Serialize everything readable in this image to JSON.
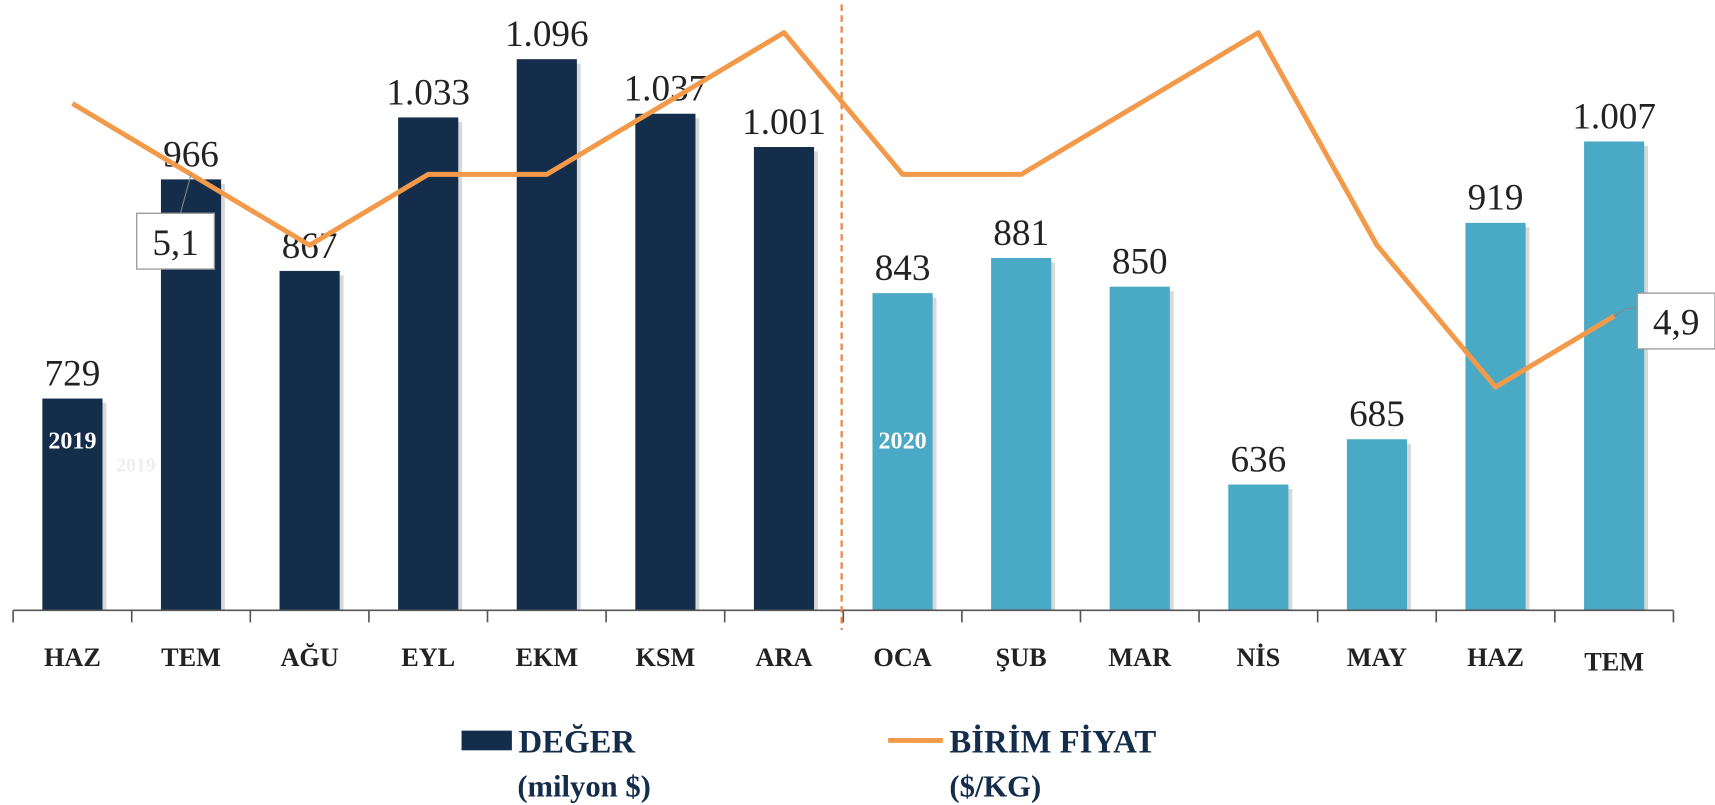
{
  "chart_data": {
    "type": "bar_line",
    "categories": [
      "HAZ",
      "TEM",
      "AĞU",
      "EYL",
      "EKM",
      "KSM",
      "ARA",
      "OCA",
      "ŞUB",
      "MAR",
      "NİS",
      "MAY",
      "HAZ",
      "TEM"
    ],
    "series": [
      {
        "name": "DEĞER",
        "unit": "(milyon $)",
        "type": "bar",
        "color": "#132d4b",
        "colors": [
          "#132d4b",
          "#132d4b",
          "#132d4b",
          "#132d4b",
          "#132d4b",
          "#132d4b",
          "#132d4b",
          "#4aaac6",
          "#4aaac6",
          "#4aaac6",
          "#4aaac6",
          "#4aaac6",
          "#4aaac6",
          "#4aaac6"
        ],
        "values": [
          729,
          966,
          867,
          1033,
          1096,
          1037,
          1001,
          843,
          881,
          850,
          636,
          685,
          919,
          1007
        ],
        "value_labels": [
          "729",
          "966",
          "867",
          "1.033",
          "1.096",
          "1.037",
          "1.001",
          "843",
          "881",
          "850",
          "636",
          "685",
          "919",
          "1.007"
        ]
      },
      {
        "name": "BİRİM FİYAT",
        "unit": "($/KG)",
        "type": "line",
        "axis": "y2",
        "color": "#f39a4a",
        "values": [
          5.2,
          5.1,
          5.0,
          5.1,
          5.1,
          5.2,
          5.3,
          5.1,
          5.1,
          5.2,
          5.3,
          5.0,
          4.8,
          4.9
        ],
        "value_labels": [
          null,
          "5,1",
          null,
          null,
          null,
          null,
          null,
          null,
          null,
          null,
          null,
          null,
          null,
          "4,9"
        ]
      }
    ],
    "annotations": [
      {
        "text": "2019",
        "index": 0,
        "color": "#ffffff"
      },
      {
        "text": "2019",
        "index": 0,
        "color": "#eeeeee",
        "faint": true
      },
      {
        "text": "2020",
        "index": 7,
        "color": "#ffffff"
      }
    ],
    "divider_after": 6,
    "ylim": [
      500,
      1160
    ],
    "y2lim": [
      4.485,
      5.346
    ]
  }
}
